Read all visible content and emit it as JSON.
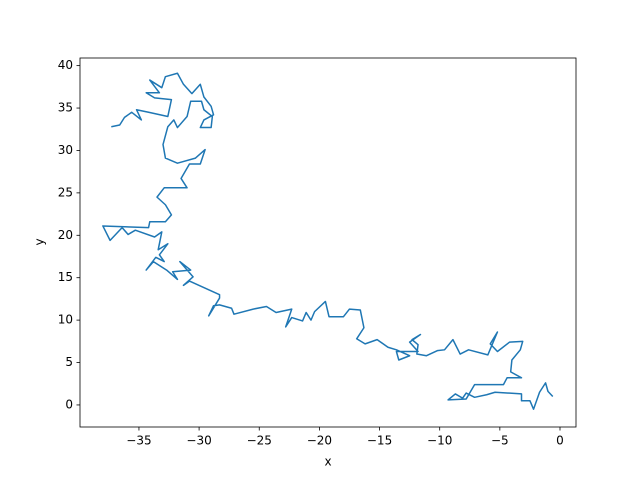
{
  "chart_data": {
    "type": "line",
    "xlabel": "x",
    "ylabel": "y",
    "color": "#1f77b4",
    "xlim": [
      -39.9,
      1.33
    ],
    "ylim": [
      -2.6,
      40.9
    ],
    "xticks": [
      {
        "value": -35,
        "label": "−35"
      },
      {
        "value": -30,
        "label": "−30"
      },
      {
        "value": -25,
        "label": "−25"
      },
      {
        "value": -20,
        "label": "−20"
      },
      {
        "value": -15,
        "label": "−15"
      },
      {
        "value": -10,
        "label": "−10"
      },
      {
        "value": -5,
        "label": "−5"
      },
      0
    ],
    "yticks": [
      0,
      5,
      10,
      15,
      20,
      25,
      30,
      35,
      40
    ],
    "x": [
      -0.6,
      -1.0,
      -1.2,
      -1.7,
      -2.2,
      -2.5,
      -3.2,
      -3.2,
      -5.4,
      -6.1,
      -7.1,
      -7.8,
      -8.1,
      -8.7,
      -9.3,
      -7.8,
      -7.1,
      -4.7,
      -4.4,
      -3.2,
      -4.1,
      -4.0,
      -3.3,
      -3.1,
      -4.2,
      -5.2,
      -5.8,
      -5.2,
      -6.0,
      -7.6,
      -8.3,
      -8.9,
      -9.6,
      -10.2,
      -11.1,
      -11.9,
      -11.8,
      -12.3,
      -11.6,
      -12.5,
      -11.8,
      -13.6,
      -13.4,
      -12.5,
      -13.6,
      -14.3,
      -15.2,
      -16.2,
      -16.9,
      -16.3,
      -16.6,
      -17.5,
      -18.0,
      -19.2,
      -19.5,
      -20.4,
      -20.7,
      -21.1,
      -21.4,
      -22.3,
      -22.8,
      -22.3,
      -23.6,
      -24.4,
      -25.5,
      -27.1,
      -27.3,
      -28.3,
      -28.8,
      -29.2,
      -28.3,
      -28.3,
      -30.8,
      -31.3,
      -30.5,
      -31.6,
      -30.7,
      -32.2,
      -31.8,
      -32.7,
      -33.8,
      -34.4,
      -33.6,
      -32.9,
      -33.3,
      -32.6,
      -33.4,
      -33.1,
      -33.7,
      -35.3,
      -35.9,
      -36.4,
      -37.4,
      -38.0,
      -34.2,
      -34.1,
      -32.8,
      -32.3,
      -32.8,
      -33.5,
      -32.9,
      -31.0,
      -31.5,
      -30.8,
      -29.9,
      -29.5,
      -30.3,
      -31.8,
      -32.8,
      -33.0,
      -32.6,
      -32.1,
      -31.8,
      -31.0,
      -30.7,
      -29.8,
      -29.6,
      -28.9,
      -29.0,
      -29.9,
      -29.6,
      -28.8,
      -29.0,
      -29.6,
      -29.9,
      -30.6,
      -31.3,
      -31.8,
      -32.8,
      -33.1,
      -34.1,
      -33.3,
      -34.4,
      -33.7,
      -32.3,
      -32.6,
      -34.2,
      -35.2,
      -34.8,
      -35.6,
      -36.2,
      -36.6,
      -37.3
    ],
    "y": [
      1.0,
      1.6,
      2.6,
      1.5,
      -0.5,
      0.5,
      0.5,
      1.3,
      1.5,
      1.2,
      0.9,
      1.4,
      0.8,
      1.3,
      0.6,
      0.7,
      2.4,
      2.4,
      3.2,
      3.2,
      3.9,
      5.3,
      6.5,
      7.5,
      7.4,
      6.3,
      7.2,
      8.6,
      5.9,
      6.5,
      6.0,
      7.7,
      6.5,
      6.4,
      5.8,
      6.0,
      7.1,
      7.7,
      8.3,
      7.4,
      6.3,
      6.3,
      5.3,
      5.8,
      6.5,
      6.8,
      7.7,
      7.2,
      7.8,
      9.1,
      11.2,
      11.3,
      10.4,
      10.4,
      12.2,
      11.0,
      10.0,
      10.9,
      9.9,
      10.3,
      9.2,
      11.3,
      10.9,
      11.6,
      11.3,
      10.7,
      11.4,
      11.8,
      11.7,
      10.5,
      12.6,
      13.0,
      14.6,
      14.1,
      15.1,
      16.9,
      15.9,
      15.7,
      14.8,
      15.9,
      16.9,
      15.9,
      17.4,
      16.9,
      17.7,
      19.0,
      18.3,
      20.4,
      19.8,
      20.6,
      20.1,
      20.9,
      19.4,
      21.1,
      20.9,
      21.6,
      21.6,
      22.4,
      23.6,
      24.5,
      25.6,
      25.6,
      26.7,
      28.4,
      28.4,
      30.1,
      29.1,
      28.5,
      29.1,
      30.7,
      32.8,
      33.6,
      32.7,
      34.0,
      35.8,
      35.8,
      34.8,
      34.0,
      32.7,
      32.7,
      33.6,
      34.2,
      35.2,
      36.3,
      37.8,
      36.7,
      37.8,
      39.1,
      38.7,
      37.4,
      38.3,
      36.8,
      36.8,
      36.2,
      36.0,
      34.0,
      34.5,
      34.8,
      33.6,
      34.5,
      33.9,
      33.0,
      32.8
    ]
  }
}
